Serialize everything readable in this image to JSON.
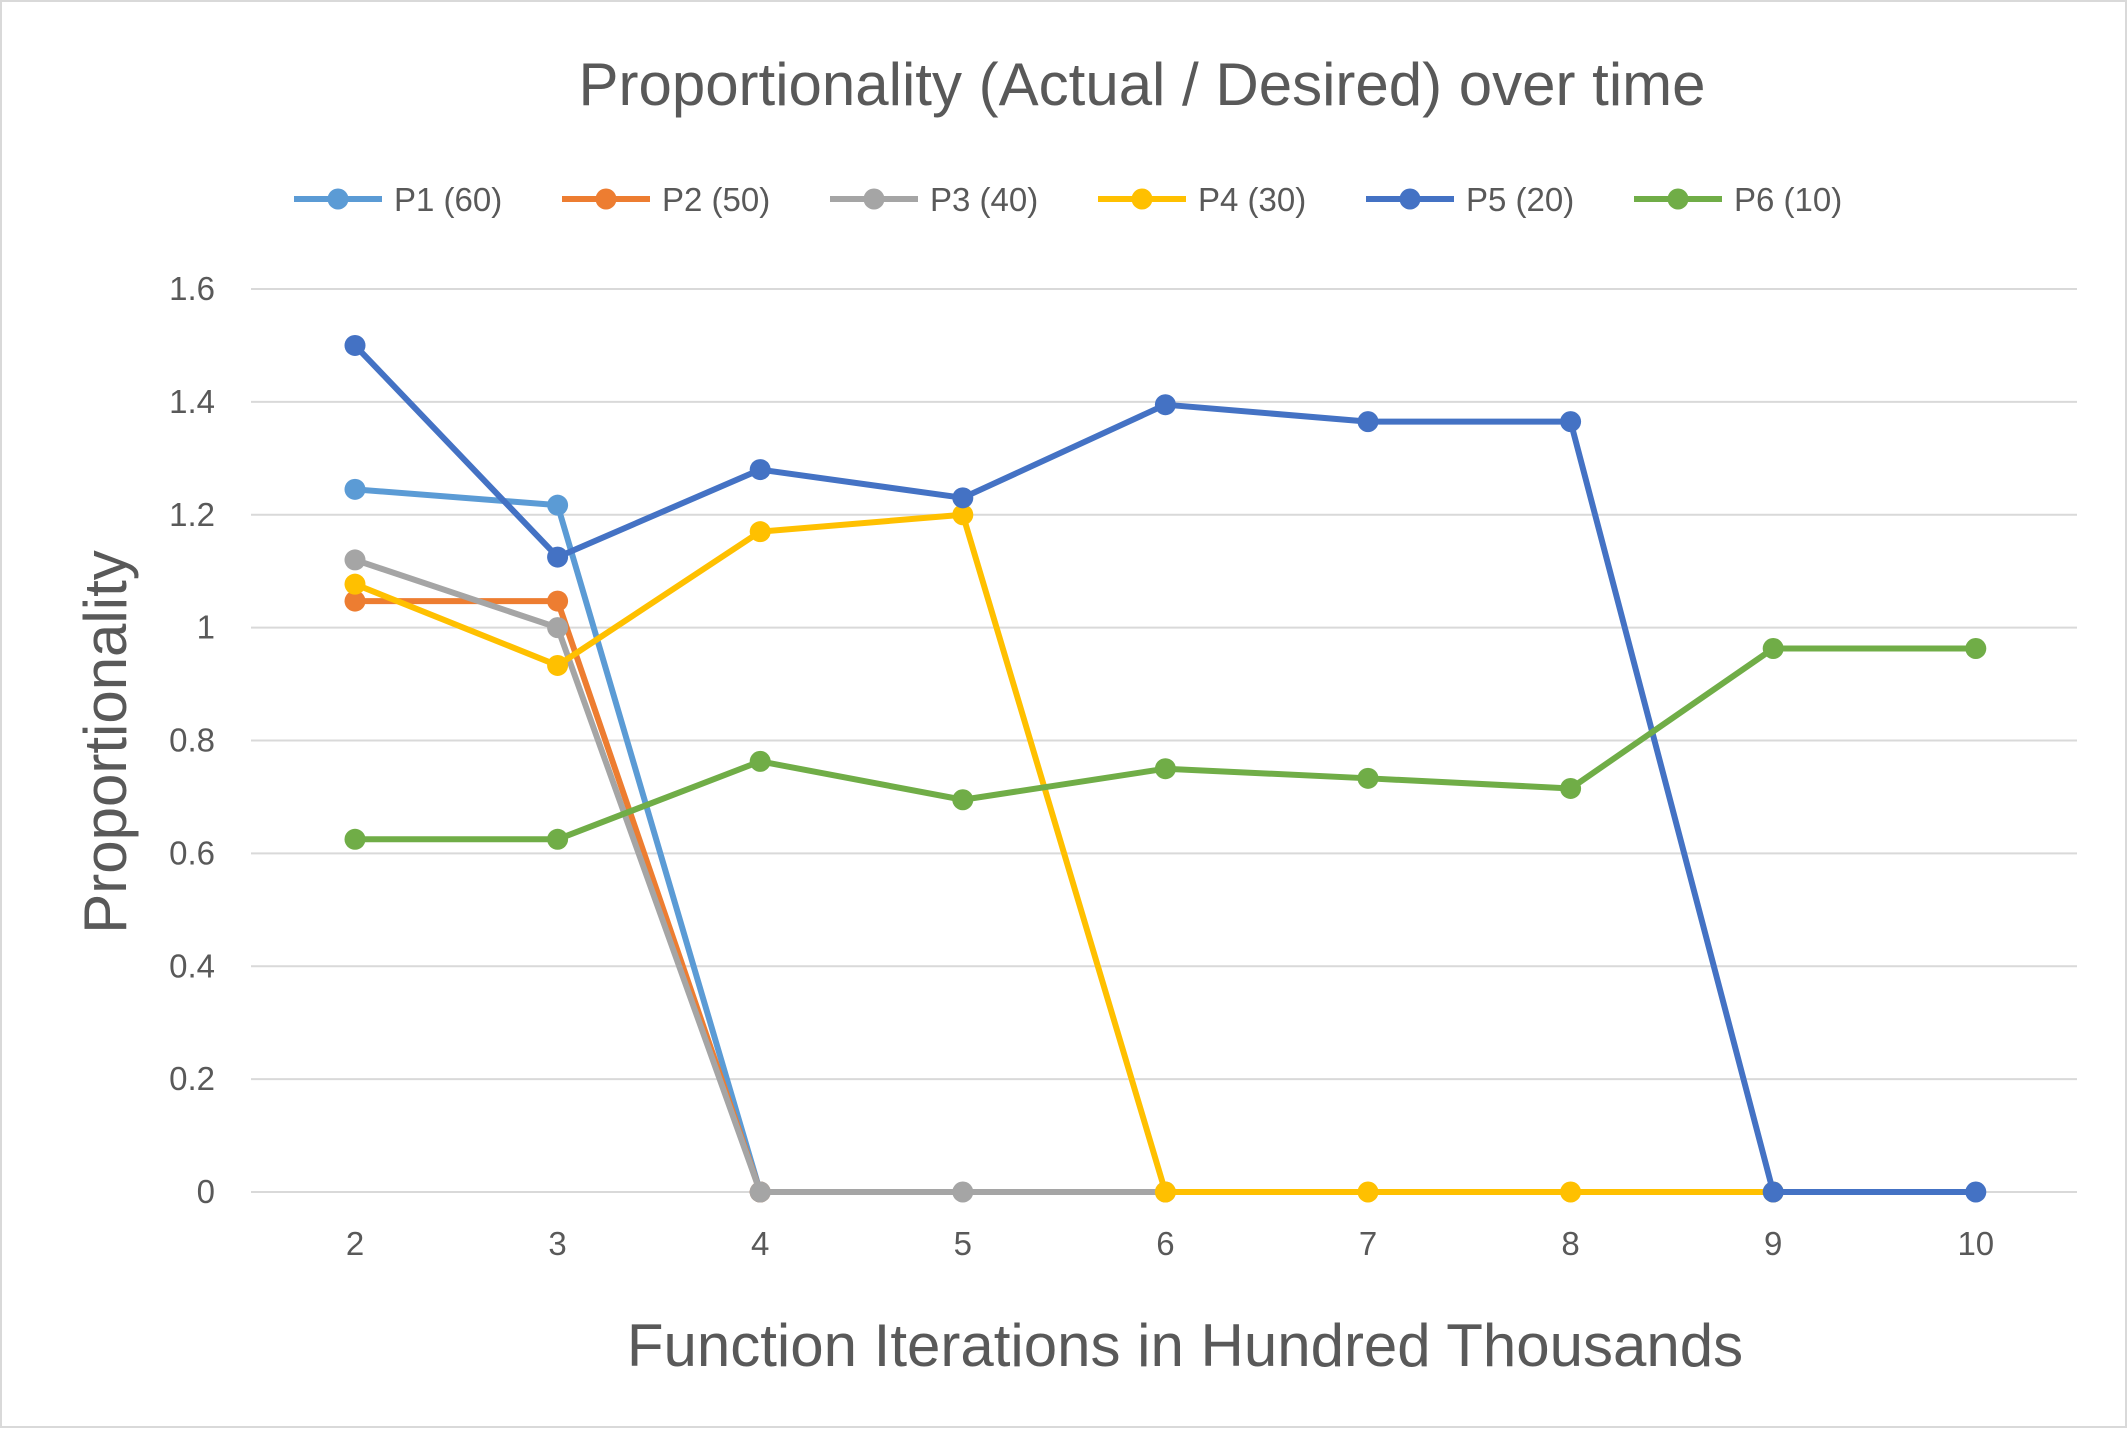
{
  "chart_data": {
    "type": "line",
    "title": "Proportionality (Actual / Desired) over time",
    "xlabel": "Function Iterations in Hundred Thousands",
    "ylabel": "Proportionality",
    "x": [
      2,
      3,
      4,
      5,
      6,
      7,
      8,
      9,
      10
    ],
    "x_tick_labels": [
      "2",
      "3",
      "4",
      "5",
      "6",
      "7",
      "8",
      "9",
      "10"
    ],
    "ylim": [
      0,
      1.6
    ],
    "y_ticks": [
      0,
      0.2,
      0.4,
      0.6,
      0.8,
      1,
      1.2,
      1.4,
      1.6
    ],
    "y_tick_labels": [
      "0",
      "0.2",
      "0.4",
      "0.6",
      "0.8",
      "1",
      "1.2",
      "1.4",
      "1.6"
    ],
    "grid": true,
    "legend_position": "top",
    "series": [
      {
        "name": "P1 (60)",
        "color": "#5b9bd5",
        "values": [
          1.245,
          1.217,
          0,
          null,
          null,
          null,
          null,
          null,
          null
        ]
      },
      {
        "name": "P2 (50)",
        "color": "#ed7d31",
        "values": [
          1.047,
          1.047,
          0,
          null,
          null,
          null,
          null,
          null,
          null
        ]
      },
      {
        "name": "P3 (40)",
        "color": "#a5a5a5",
        "values": [
          1.12,
          1.0,
          0,
          0,
          0,
          null,
          null,
          null,
          null
        ]
      },
      {
        "name": "P4 (30)",
        "color": "#ffc000",
        "values": [
          1.077,
          0.933,
          1.17,
          1.2,
          0,
          0,
          0,
          0,
          null
        ]
      },
      {
        "name": "P5 (20)",
        "color": "#4472c4",
        "values": [
          1.5,
          1.125,
          1.28,
          1.23,
          1.395,
          1.365,
          1.365,
          0,
          0
        ]
      },
      {
        "name": "P6 (10)",
        "color": "#70ad47",
        "values": [
          0.625,
          0.625,
          0.763,
          0.695,
          0.75,
          0.733,
          0.715,
          0.963,
          0.963
        ]
      }
    ]
  }
}
